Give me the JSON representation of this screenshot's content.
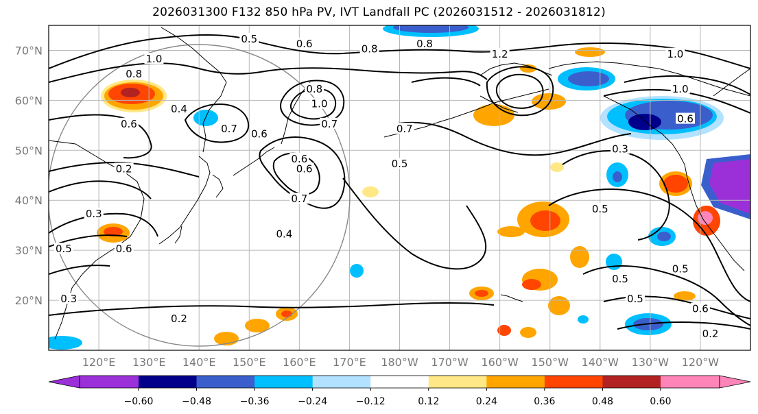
{
  "title": "2026031300 F132 850 hPa PV, IVT Landfall PC (2026031512 - 2026031812)",
  "map": {
    "lat_labels": [
      "70°N",
      "60°N",
      "50°N",
      "40°N",
      "30°N",
      "20°N"
    ],
    "lon_labels": [
      "120°E",
      "130°E",
      "140°E",
      "150°E",
      "160°E",
      "170°E",
      "180°W",
      "170°W",
      "160°W",
      "150°W",
      "140°W",
      "130°W",
      "120°W"
    ],
    "lat_range": [
      10,
      75
    ],
    "lon_range": [
      110,
      250
    ],
    "grid": true,
    "contour_labels": [
      {
        "text": "0.5",
        "lon": 150,
        "lat": 72
      },
      {
        "text": "0.6",
        "lon": 161,
        "lat": 71
      },
      {
        "text": "0.8",
        "lon": 174,
        "lat": 70
      },
      {
        "text": "0.8",
        "lon": 185,
        "lat": 71
      },
      {
        "text": "1.2",
        "lon": 200,
        "lat": 69
      },
      {
        "text": "0.8",
        "lon": 127,
        "lat": 65
      },
      {
        "text": "1.0",
        "lon": 131,
        "lat": 68
      },
      {
        "text": "0.4",
        "lon": 136,
        "lat": 58
      },
      {
        "text": "0.6",
        "lon": 126,
        "lat": 55
      },
      {
        "text": "0.7",
        "lon": 146,
        "lat": 54
      },
      {
        "text": "0.6",
        "lon": 152,
        "lat": 53
      },
      {
        "text": "0.8",
        "lon": 163,
        "lat": 62
      },
      {
        "text": "1.0",
        "lon": 164,
        "lat": 59
      },
      {
        "text": "0.7",
        "lon": 166,
        "lat": 55
      },
      {
        "text": "0.7",
        "lon": 181,
        "lat": 54
      },
      {
        "text": "0.5",
        "lon": 180,
        "lat": 47
      },
      {
        "text": "0.6",
        "lon": 160,
        "lat": 48
      },
      {
        "text": "0.6",
        "lon": 161,
        "lat": 46
      },
      {
        "text": "0.7",
        "lon": 160,
        "lat": 40
      },
      {
        "text": "0.4",
        "lon": 157,
        "lat": 33
      },
      {
        "text": "0.2",
        "lon": 125,
        "lat": 46
      },
      {
        "text": "0.3",
        "lon": 119,
        "lat": 37
      },
      {
        "text": "0.5",
        "lon": 113,
        "lat": 30
      },
      {
        "text": "0.6",
        "lon": 125,
        "lat": 30
      },
      {
        "text": "0.3",
        "lon": 114,
        "lat": 20
      },
      {
        "text": "0.2",
        "lon": 136,
        "lat": 16
      },
      {
        "text": "0.3",
        "lon": 224,
        "lat": 50
      },
      {
        "text": "0.5",
        "lon": 220,
        "lat": 38
      },
      {
        "text": "0.5",
        "lon": 224,
        "lat": 24
      },
      {
        "text": "0.5",
        "lon": 236,
        "lat": 26
      },
      {
        "text": "0.5",
        "lon": 227,
        "lat": 20
      },
      {
        "text": "0.6",
        "lon": 240,
        "lat": 18
      },
      {
        "text": "0.2",
        "lon": 242,
        "lat": 13
      },
      {
        "text": "0.6",
        "lon": 237,
        "lat": 56
      },
      {
        "text": "1.0",
        "lon": 236,
        "lat": 62
      },
      {
        "text": "1.0",
        "lon": 235,
        "lat": 69
      }
    ]
  },
  "colorbar": {
    "ticks": [
      "−0.60",
      "−0.48",
      "−0.36",
      "−0.24",
      "−0.12",
      "0.12",
      "0.24",
      "0.36",
      "0.48",
      "0.60"
    ],
    "colors": [
      "#9b30d9",
      "#00008b",
      "#3a5fcd",
      "#00bfff",
      "#b2e2ff",
      "#ffffff",
      "#ffe885",
      "#ffa500",
      "#ff4500",
      "#b22222",
      "#ff85b8"
    ],
    "extend": "both"
  },
  "palette": {
    "land_line": "#000000",
    "grid_line": "#b8b8b8",
    "circle": "#888888"
  }
}
